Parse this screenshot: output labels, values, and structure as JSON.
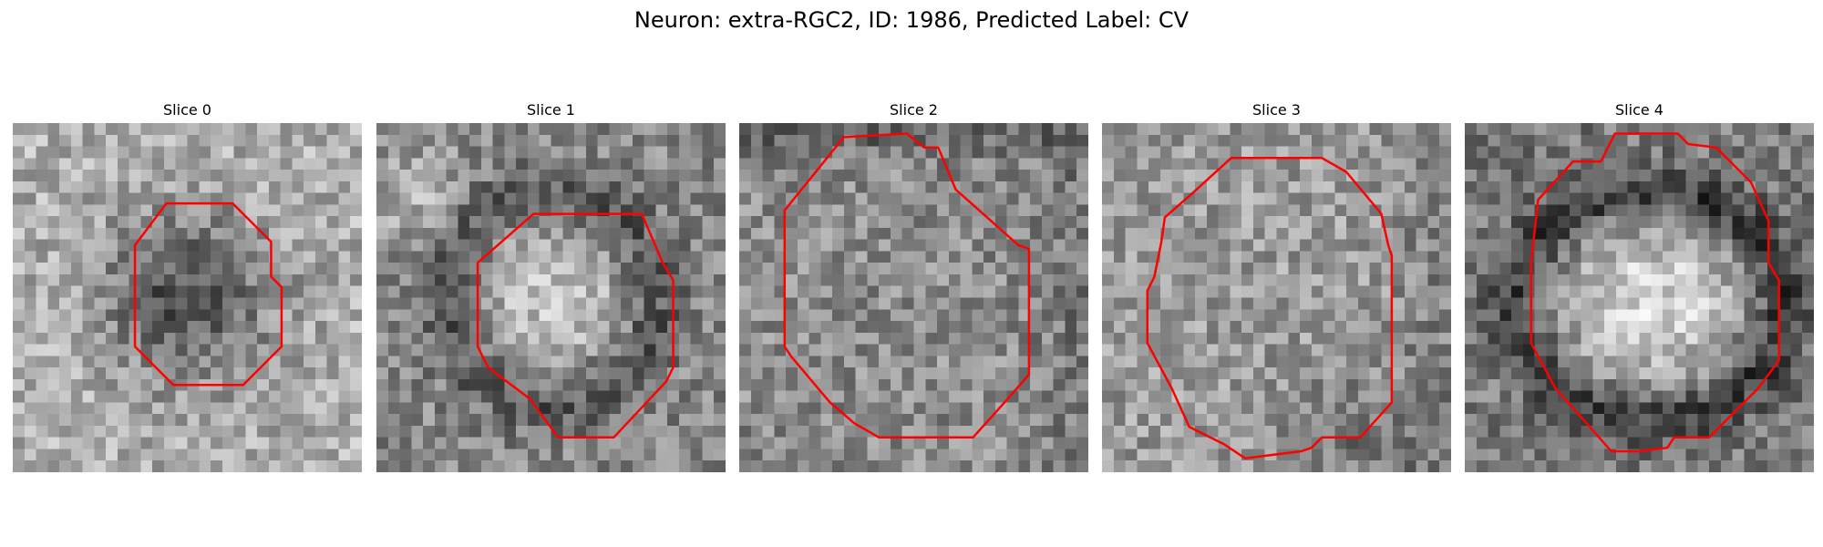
{
  "figure": {
    "suptitle": "Neuron: extra-RGC2, ID: 1986, Predicted Label: CV"
  },
  "panels": [
    {
      "title": "Slice 0",
      "pattern": "dark-center",
      "seed": 11,
      "contour": [
        [
          44,
          23
        ],
        [
          63,
          23
        ],
        [
          74,
          34
        ],
        [
          74,
          44
        ],
        [
          77,
          47
        ],
        [
          77,
          64
        ],
        [
          66,
          75
        ],
        [
          46,
          75
        ],
        [
          35,
          64
        ],
        [
          35,
          35
        ]
      ]
    },
    {
      "title": "Slice 1",
      "pattern": "bright-center",
      "seed": 23,
      "contour": [
        [
          45,
          26
        ],
        [
          76,
          26
        ],
        [
          82,
          40
        ],
        [
          85,
          45
        ],
        [
          85,
          70
        ],
        [
          83,
          74
        ],
        [
          68,
          90
        ],
        [
          52,
          90
        ],
        [
          44,
          79
        ],
        [
          32,
          70
        ],
        [
          29,
          64
        ],
        [
          29,
          40
        ]
      ]
    },
    {
      "title": "Slice 2",
      "pattern": "uniform-mid",
      "seed": 37,
      "contour": [
        [
          30,
          4
        ],
        [
          48,
          3
        ],
        [
          53,
          7
        ],
        [
          57,
          7
        ],
        [
          62,
          19
        ],
        [
          80,
          35
        ],
        [
          83,
          36
        ],
        [
          83,
          72
        ],
        [
          76,
          80
        ],
        [
          67,
          90
        ],
        [
          40,
          90
        ],
        [
          33,
          86
        ],
        [
          26,
          80
        ],
        [
          15,
          67
        ],
        [
          13,
          64
        ],
        [
          13,
          25
        ]
      ]
    },
    {
      "title": "Slice 3",
      "pattern": "uniform-light",
      "seed": 53,
      "contour": [
        [
          37,
          10
        ],
        [
          63,
          10
        ],
        [
          70,
          14
        ],
        [
          80,
          26
        ],
        [
          82,
          35
        ],
        [
          83,
          38
        ],
        [
          83,
          80
        ],
        [
          74,
          90
        ],
        [
          63,
          90
        ],
        [
          60,
          93
        ],
        [
          57,
          94
        ],
        [
          41,
          96
        ],
        [
          35,
          92
        ],
        [
          25,
          87
        ],
        [
          20,
          76
        ],
        [
          13,
          63
        ],
        [
          13,
          48
        ],
        [
          15,
          44
        ],
        [
          17,
          34
        ],
        [
          18,
          27
        ],
        [
          26,
          20
        ]
      ]
    },
    {
      "title": "Slice 4",
      "pattern": "bright-ring",
      "seed": 71,
      "contour": [
        [
          43,
          3
        ],
        [
          61,
          3
        ],
        [
          64,
          6
        ],
        [
          72,
          7
        ],
        [
          82,
          17
        ],
        [
          87,
          28
        ],
        [
          87,
          40
        ],
        [
          90,
          45
        ],
        [
          90,
          68
        ],
        [
          84,
          76
        ],
        [
          76,
          84
        ],
        [
          70,
          90
        ],
        [
          60,
          90
        ],
        [
          58,
          93
        ],
        [
          50,
          94
        ],
        [
          42,
          94
        ],
        [
          26,
          76
        ],
        [
          19,
          63
        ],
        [
          19,
          60
        ],
        [
          19,
          40
        ],
        [
          21,
          22
        ],
        [
          31,
          11
        ],
        [
          39,
          11
        ]
      ]
    }
  ],
  "colors": {
    "contour": "#ff0000",
    "background": "#ffffff"
  }
}
